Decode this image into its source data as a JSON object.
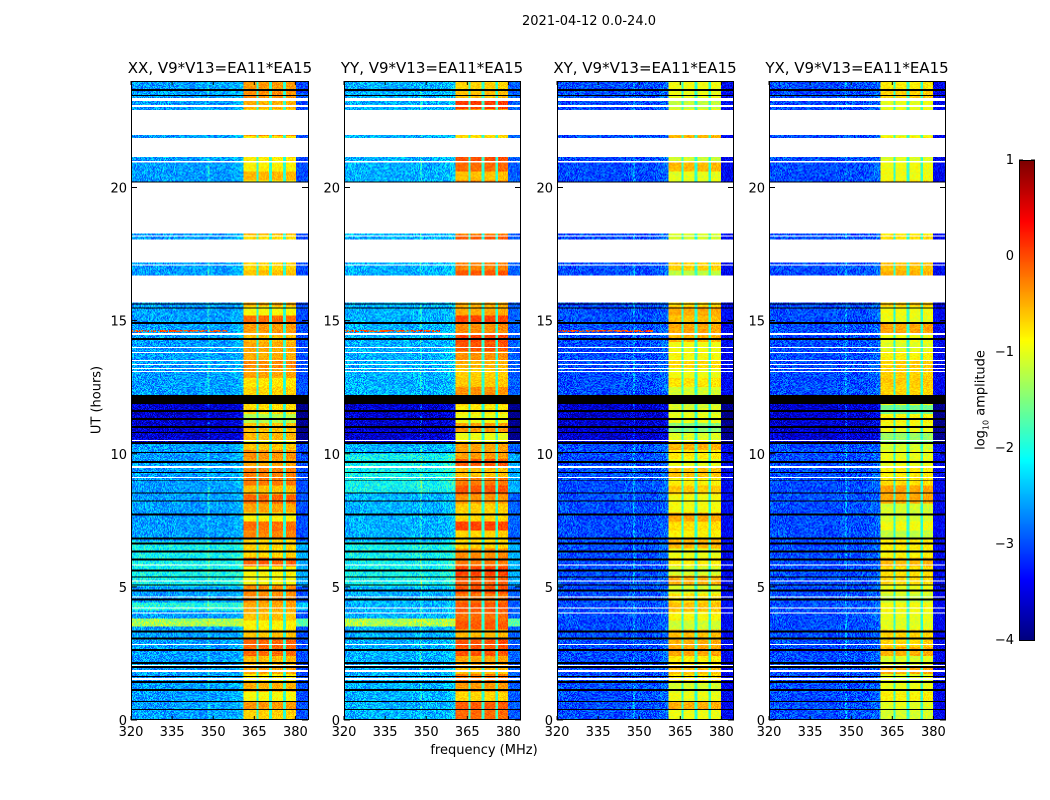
{
  "chart_data": {
    "type": "heatmap",
    "suptitle": "2021-04-12 0.0-24.0",
    "xlabel": "frequency (MHz)",
    "ylabel": "UT (hours)",
    "xlim": [
      320,
      384.6
    ],
    "ylim": [
      0,
      24
    ],
    "xticks": [
      320,
      335,
      350,
      365,
      380
    ],
    "yticks": [
      0,
      5,
      10,
      15,
      20
    ],
    "colorbar": {
      "label_main": "log",
      "label_sub": "10",
      "label_rest": " amplitude",
      "range": [
        -4,
        1
      ],
      "ticks": [
        1,
        0,
        -1,
        -2,
        -3,
        -4
      ],
      "colormap": "jet"
    },
    "panels": [
      {
        "title": "XX, V9*V13=EA11*EA15",
        "background_level": -2.6,
        "rfi_level": -0.5,
        "bright_bands": [
          [
            3.5,
            3.8,
            -1.3
          ],
          [
            5.0,
            6.7,
            -2.1
          ],
          [
            4.1,
            4.4,
            -2.0
          ]
        ]
      },
      {
        "title": "YY, V9*V13=EA11*EA15",
        "background_level": -2.5,
        "rfi_level": -0.3,
        "bright_bands": [
          [
            3.5,
            3.8,
            -1.3
          ],
          [
            5.0,
            6.7,
            -2.1
          ],
          [
            8.5,
            10.0,
            -2.1
          ]
        ]
      },
      {
        "title": "XY, V9*V13=EA11*EA15",
        "background_level": -3.0,
        "rfi_level": -0.8,
        "bright_bands": []
      },
      {
        "title": "YX, V9*V13=EA11*EA15",
        "background_level": -3.0,
        "rfi_level": -0.8,
        "bright_bands": []
      }
    ],
    "rfi_band_mhz": [
      361,
      380.4
    ],
    "rfi_channel_gaps_mhz": [
      366,
      371,
      376
    ],
    "flagged_ranges_hours": [
      [
        15.7,
        16.7
      ],
      [
        17.2,
        18.05
      ],
      [
        18.3,
        20.2
      ],
      [
        21.2,
        21.9
      ],
      [
        22.1,
        22.95
      ],
      [
        23.3,
        23.4
      ]
    ],
    "flagged_lines_hours": [
      1.5,
      1.8,
      2.0,
      2.8,
      4.0,
      4.2,
      4.6,
      5.2,
      5.8,
      9.1,
      9.5,
      10.5,
      13.1,
      13.2,
      13.35,
      13.5,
      13.8,
      14.0,
      14.5,
      17.1,
      18.2,
      21.0,
      22.05,
      23.1
    ],
    "dark_lines_hours": [
      0.35,
      0.65,
      1.1,
      1.4,
      1.6,
      1.95,
      2.1,
      2.6,
      3.05,
      3.3,
      4.5,
      4.85,
      5.05,
      5.35,
      5.6,
      6.0,
      6.3,
      6.6,
      6.8,
      7.7,
      8.2,
      8.5,
      9.0,
      9.3,
      9.7,
      10.05,
      10.4,
      10.8,
      11.0,
      11.3,
      11.6,
      11.9,
      12.1,
      14.3,
      14.9,
      15.5,
      15.65,
      20.2,
      23.5,
      23.7
    ],
    "dark_band_hours": [
      11.9,
      12.2
    ],
    "low_band_hours": [
      10.45,
      12.2
    ],
    "narrow_rfi_lines_hours": [
      9.5,
      14.6
    ]
  }
}
